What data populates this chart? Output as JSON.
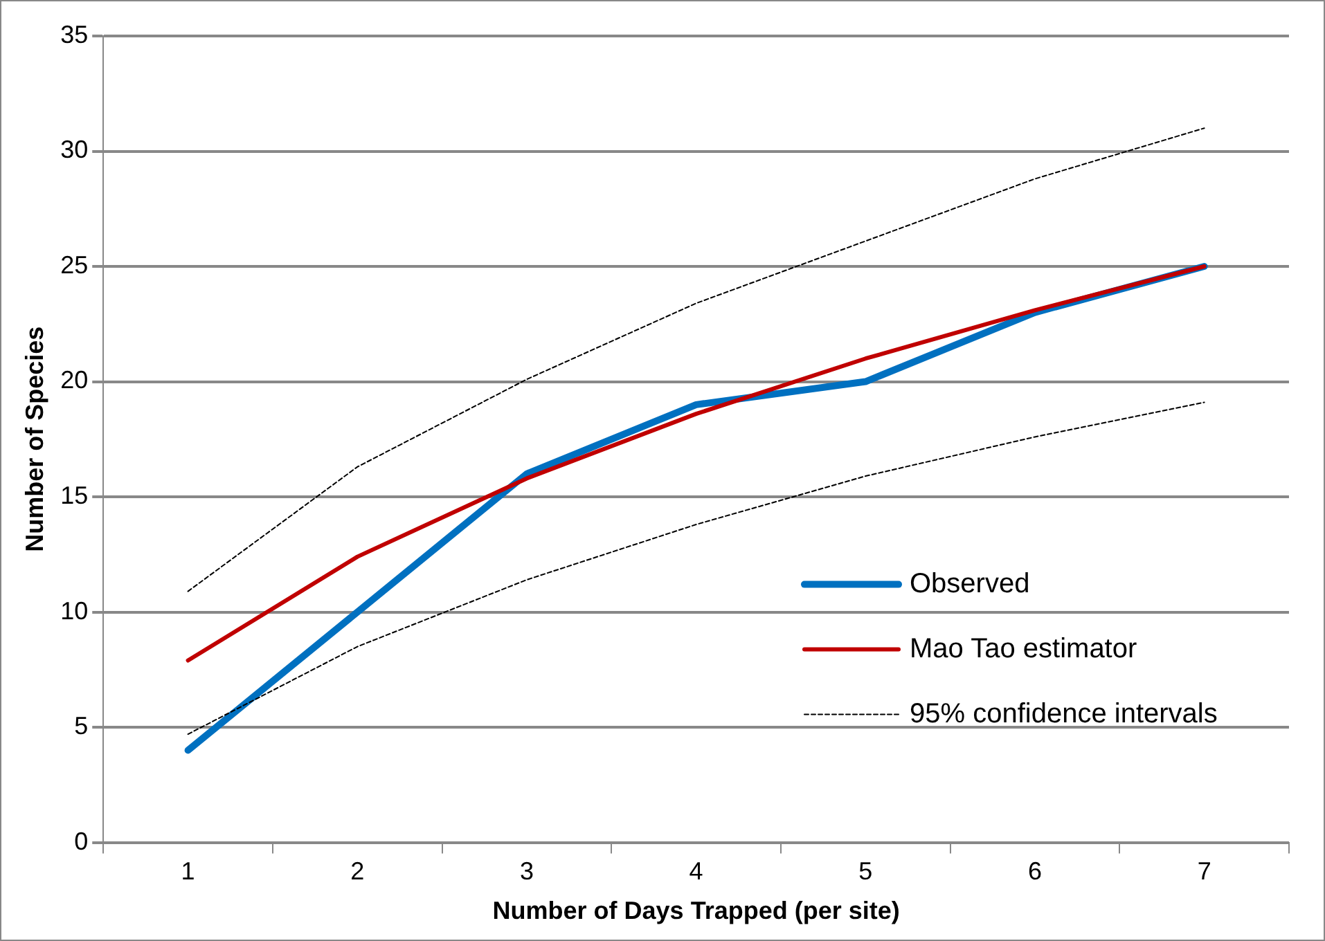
{
  "chart_data": {
    "type": "line",
    "xlabel": "Number of Days Trapped (per site)",
    "ylabel": "Number of Species",
    "categories": [
      "1",
      "2",
      "3",
      "4",
      "5",
      "6",
      "7"
    ],
    "series": [
      {
        "name": "Observed",
        "color": "#0070c0",
        "values": [
          4,
          10,
          16,
          19,
          20,
          23,
          25
        ],
        "line_style": "solid"
      },
      {
        "name": "Mao Tao estimator",
        "color": "#c00000",
        "values": [
          7.9,
          12.4,
          15.8,
          18.6,
          21,
          23.1,
          25
        ],
        "line_style": "solid"
      },
      {
        "name": "95% confidence intervals",
        "color": "#000000",
        "values": [
          10.9,
          16.3,
          20.1,
          23.4,
          26.1,
          28.8,
          31
        ],
        "line_style": "dotted"
      },
      {
        "color": "#000000",
        "values": [
          4.7,
          8.5,
          11.4,
          13.8,
          15.9,
          17.6,
          19.1
        ],
        "line_style": "dotted"
      }
    ],
    "ylim": [
      0,
      35
    ],
    "yticks": [
      0,
      5,
      10,
      15,
      20,
      25,
      30,
      35
    ],
    "grid": "y",
    "legend": "right",
    "marker": "none"
  }
}
